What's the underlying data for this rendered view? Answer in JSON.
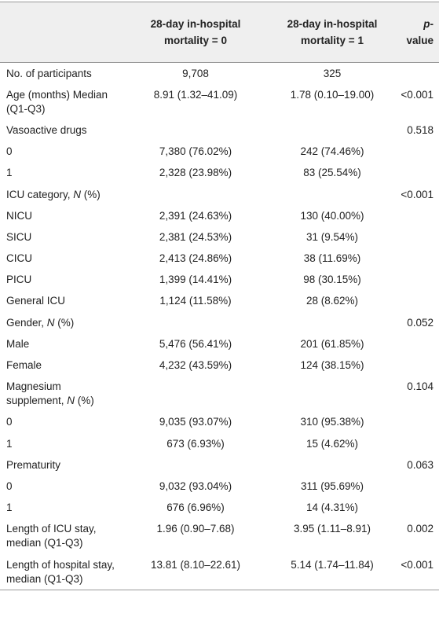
{
  "header": {
    "columns": [
      "28-day in-hospital mortality = 0",
      "28-day in-hospital mortality = 1"
    ],
    "p_column": [
      {
        "text": "p",
        "style": "italic"
      },
      "-value"
    ]
  },
  "rows": [
    {
      "label": [
        "No. of participants"
      ],
      "cells": [
        "9,708",
        "325",
        null
      ]
    },
    {
      "label": [
        "Age (months) Median (Q1-Q3)"
      ],
      "cells": [
        "8.91 (1.32–41.09)",
        "1.78 (0.10–19.00)",
        "<0.001"
      ]
    },
    {
      "label": [
        "Vasoactive drugs"
      ],
      "cells": [
        null,
        null,
        "0.518"
      ]
    },
    {
      "label": [
        "0"
      ],
      "cells": [
        "7,380 (76.02%)",
        "242 (74.46%)",
        null
      ]
    },
    {
      "label": [
        "1"
      ],
      "cells": [
        "2,328 (23.98%)",
        "83 (25.54%)",
        null
      ]
    },
    {
      "label": [
        "ICU category, ",
        {
          "text": "N",
          "style": "italic"
        },
        " (%)"
      ],
      "cells": [
        null,
        null,
        "<0.001"
      ]
    },
    {
      "label": [
        "NICU"
      ],
      "cells": [
        "2,391 (24.63%)",
        "130 (40.00%)",
        null
      ]
    },
    {
      "label": [
        "SICU"
      ],
      "cells": [
        "2,381 (24.53%)",
        "31 (9.54%)",
        null
      ]
    },
    {
      "label": [
        "CICU"
      ],
      "cells": [
        "2,413 (24.86%)",
        "38 (11.69%)",
        null
      ]
    },
    {
      "label": [
        "PICU"
      ],
      "cells": [
        "1,399 (14.41%)",
        "98 (30.15%)",
        null
      ]
    },
    {
      "label": [
        "General ICU"
      ],
      "cells": [
        "1,124 (11.58%)",
        "28 (8.62%)",
        null
      ]
    },
    {
      "label": [
        "Gender, ",
        {
          "text": "N",
          "style": "italic"
        },
        " (%)"
      ],
      "cells": [
        null,
        null,
        "0.052"
      ]
    },
    {
      "label": [
        "Male"
      ],
      "cells": [
        "5,476 (56.41%)",
        "201 (61.85%)",
        null
      ]
    },
    {
      "label": [
        "Female"
      ],
      "cells": [
        "4,232 (43.59%)",
        "124 (38.15%)",
        null
      ]
    },
    {
      "label": [
        "Magnesium supplement, ",
        {
          "text": "N",
          "style": "italic"
        },
        " (%)"
      ],
      "cells": [
        null,
        null,
        "0.104"
      ]
    },
    {
      "label": [
        "0"
      ],
      "cells": [
        "9,035 (93.07%)",
        "310 (95.38%)",
        null
      ]
    },
    {
      "label": [
        "1"
      ],
      "cells": [
        "673 (6.93%)",
        "15 (4.62%)",
        null
      ]
    },
    {
      "label": [
        "Prematurity"
      ],
      "cells": [
        null,
        null,
        "0.063"
      ]
    },
    {
      "label": [
        "0"
      ],
      "cells": [
        "9,032 (93.04%)",
        "311 (95.69%)",
        null
      ]
    },
    {
      "label": [
        "1"
      ],
      "cells": [
        "676 (6.96%)",
        "14 (4.31%)",
        null
      ]
    },
    {
      "label": [
        "Length of ICU stay, median (Q1-Q3)"
      ],
      "cells": [
        "1.96 (0.90–7.68)",
        "3.95 (1.11–8.91)",
        "0.002"
      ]
    },
    {
      "label": [
        "Length of hospital stay, median (Q1-Q3)"
      ],
      "cells": [
        "13.81 (8.10–22.61)",
        "5.14 (1.74–11.84)",
        "<0.001"
      ]
    }
  ]
}
